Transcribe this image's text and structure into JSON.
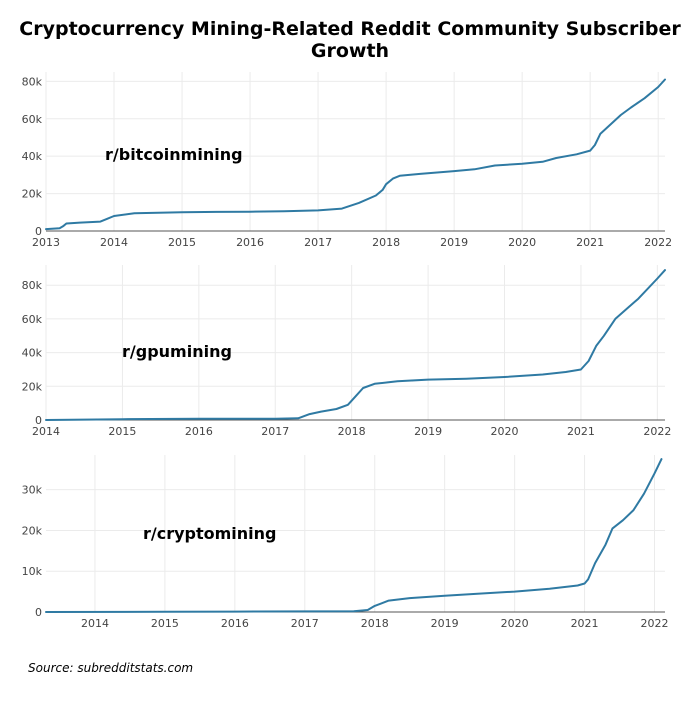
{
  "title": "Cryptocurrency Mining-Related Reddit Community Subscriber Growth",
  "source": "Source: subredditstats.com",
  "colors": {
    "line": "#2f7aa3"
  },
  "chart_data": [
    {
      "type": "line",
      "label": "r/bitcoinmining",
      "xlim": [
        2013,
        2022.1
      ],
      "ylim": [
        0,
        85000
      ],
      "xticks": [
        2013,
        2014,
        2015,
        2016,
        2017,
        2018,
        2019,
        2020,
        2021,
        2022
      ],
      "xtick_labels": [
        "2013",
        "2014",
        "2015",
        "2016",
        "2017",
        "2018",
        "2019",
        "2020",
        "2021",
        "2022"
      ],
      "yticks": [
        0,
        20000,
        40000,
        60000,
        80000
      ],
      "ytick_labels": [
        "0",
        "20k",
        "40k",
        "60k",
        "80k"
      ],
      "series": [
        {
          "x": [
            2013.0,
            2013.2,
            2013.25,
            2013.3,
            2013.5,
            2013.8,
            2013.9,
            2014.0,
            2014.3,
            2015.0,
            2015.5,
            2016.0,
            2016.5,
            2017.0,
            2017.35,
            2017.6,
            2017.85,
            2017.95,
            2018.0,
            2018.1,
            2018.2,
            2018.5,
            2019.0,
            2019.3,
            2019.6,
            2020.0,
            2020.3,
            2020.5,
            2020.8,
            2021.0,
            2021.07,
            2021.15,
            2021.3,
            2021.45,
            2021.6,
            2021.8,
            2022.0,
            2022.1
          ],
          "y": [
            1000,
            1500,
            2500,
            4000,
            4500,
            5000,
            6500,
            8000,
            9500,
            10000,
            10200,
            10300,
            10600,
            11000,
            12000,
            15000,
            19000,
            22000,
            25000,
            28000,
            29500,
            30500,
            32000,
            33000,
            35000,
            36000,
            37000,
            39000,
            41000,
            43000,
            46000,
            52000,
            57000,
            62000,
            66000,
            71000,
            77000,
            81000
          ]
        }
      ]
    },
    {
      "type": "line",
      "label": "r/gpumining",
      "xlim": [
        2014,
        2022.1
      ],
      "ylim": [
        0,
        92000
      ],
      "xticks": [
        2014,
        2015,
        2016,
        2017,
        2018,
        2019,
        2020,
        2021,
        2022
      ],
      "xtick_labels": [
        "2014",
        "2015",
        "2016",
        "2017",
        "2018",
        "2019",
        "2020",
        "2021",
        "2022"
      ],
      "yticks": [
        0,
        20000,
        40000,
        60000,
        80000
      ],
      "ytick_labels": [
        "0",
        "20k",
        "40k",
        "60k",
        "80k"
      ],
      "series": [
        {
          "x": [
            2014.0,
            2015.0,
            2016.0,
            2017.0,
            2017.3,
            2017.45,
            2017.6,
            2017.8,
            2017.95,
            2018.05,
            2018.15,
            2018.3,
            2018.6,
            2019.0,
            2019.5,
            2020.0,
            2020.5,
            2020.8,
            2021.0,
            2021.1,
            2021.2,
            2021.3,
            2021.45,
            2021.6,
            2021.75,
            2022.0,
            2022.1
          ],
          "y": [
            0,
            500,
            700,
            800,
            1000,
            3500,
            5000,
            6500,
            9000,
            14000,
            19000,
            21500,
            23000,
            24000,
            24500,
            25500,
            27000,
            28500,
            30000,
            35000,
            44000,
            50000,
            60000,
            66000,
            72000,
            84000,
            89000
          ]
        }
      ]
    },
    {
      "type": "line",
      "label": "r/cryptomining",
      "xlim": [
        2013.3,
        2022.15
      ],
      "ylim": [
        0,
        38500
      ],
      "xticks": [
        2014,
        2015,
        2016,
        2017,
        2018,
        2019,
        2020,
        2021,
        2022
      ],
      "xtick_labels": [
        "2014",
        "2015",
        "2016",
        "2017",
        "2018",
        "2019",
        "2020",
        "2021",
        "2022"
      ],
      "yticks": [
        0,
        10000,
        20000,
        30000
      ],
      "ytick_labels": [
        "0",
        "10k",
        "20k",
        "30k"
      ],
      "series": [
        {
          "x": [
            2013.3,
            2015.0,
            2016.0,
            2017.0,
            2017.7,
            2017.9,
            2018.0,
            2018.2,
            2018.5,
            2019.0,
            2019.5,
            2020.0,
            2020.5,
            2020.9,
            2021.0,
            2021.05,
            2021.15,
            2021.3,
            2021.4,
            2021.55,
            2021.7,
            2021.85,
            2022.0,
            2022.1
          ],
          "y": [
            0,
            50,
            100,
            150,
            200,
            500,
            1500,
            2800,
            3400,
            4000,
            4500,
            5000,
            5700,
            6500,
            7000,
            8000,
            12000,
            16500,
            20500,
            22500,
            25000,
            29000,
            34000,
            37500
          ]
        }
      ]
    }
  ]
}
